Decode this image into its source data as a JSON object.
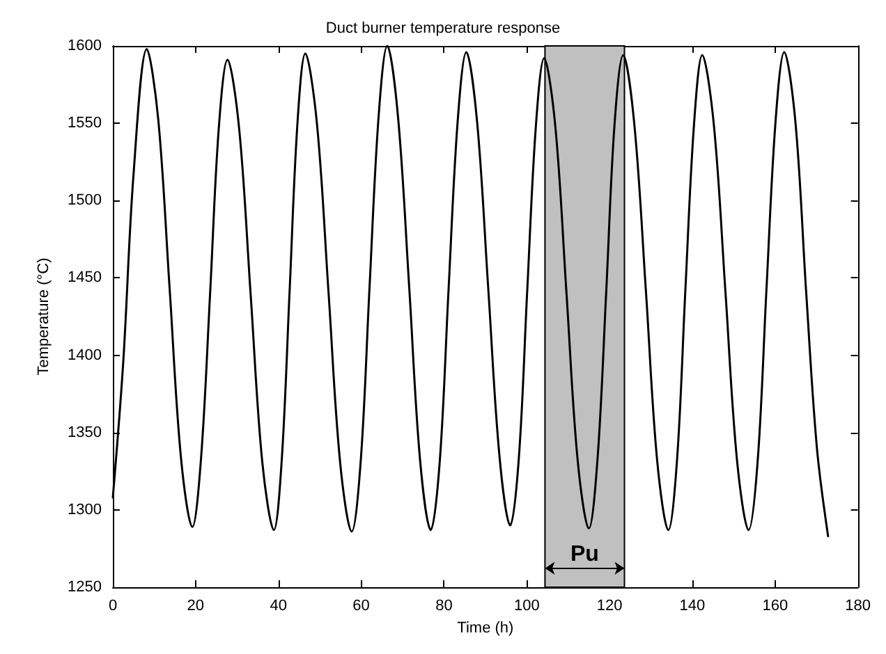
{
  "chart_data": {
    "type": "line",
    "title": "Duct burner temperature response",
    "xlabel": "Time (h)",
    "ylabel": "Temperature (°C)",
    "x": [
      0,
      2.5,
      5,
      8.2,
      10.95,
      13.7,
      16.45,
      19.2,
      21.3,
      23.5,
      25.6,
      27.7,
      30.5,
      33.3,
      36.1,
      38.9,
      40.8,
      42.7,
      44.6,
      46.5,
      49.3,
      52.1,
      54.9,
      57.7,
      59.9,
      62,
      64.2,
      66.3,
      68.9,
      71.6,
      74.2,
      76.8,
      79,
      81.1,
      83.3,
      85.4,
      88,
      90.7,
      93.4,
      96,
      98.1,
      100.1,
      102.2,
      104.2,
      106.9,
      109.6,
      112.3,
      115,
      117.1,
      119.2,
      121.2,
      123.3,
      126,
      128.8,
      131.5,
      134.2,
      136.3,
      138.3,
      140.4,
      142.4,
      145.2,
      148,
      150.8,
      153.6,
      155.8,
      157.9,
      160.1,
      162.2,
      164.9,
      167.5,
      170.1,
      172.8
    ],
    "series": [
      {
        "color": "#000000",
        "values": [
          1308,
          1395,
          1517,
          1598,
          1553,
          1444,
          1334,
          1289,
          1333,
          1440,
          1547,
          1591,
          1547,
          1439,
          1331,
          1287,
          1332,
          1441,
          1550,
          1595,
          1550,
          1441,
          1331,
          1286,
          1332,
          1443,
          1554,
          1600,
          1554,
          1444,
          1333,
          1287,
          1332,
          1442,
          1551,
          1596,
          1551,
          1443,
          1335,
          1290,
          1334,
          1441,
          1548,
          1592,
          1548,
          1440,
          1332,
          1288,
          1333,
          1441,
          1549,
          1594,
          1549,
          1441,
          1332,
          1287,
          1332,
          1441,
          1549,
          1594,
          1549,
          1441,
          1332,
          1287,
          1332,
          1442,
          1551,
          1596,
          1551,
          1441,
          1340,
          1283
        ]
      }
    ],
    "xlim": [
      0,
      180
    ],
    "xticks": [
      0,
      20,
      40,
      60,
      80,
      100,
      120,
      140,
      160,
      180
    ],
    "ylim": [
      1250,
      1600
    ],
    "yticks": [
      1250,
      1300,
      1350,
      1400,
      1450,
      1500,
      1550,
      1600
    ],
    "bands": [
      {
        "axis": "x",
        "from": 104.4,
        "to": 123.6,
        "label": "Pu",
        "color": "#c0c0c0"
      }
    ],
    "grid": false,
    "marker": "none",
    "line_style": "solid"
  }
}
